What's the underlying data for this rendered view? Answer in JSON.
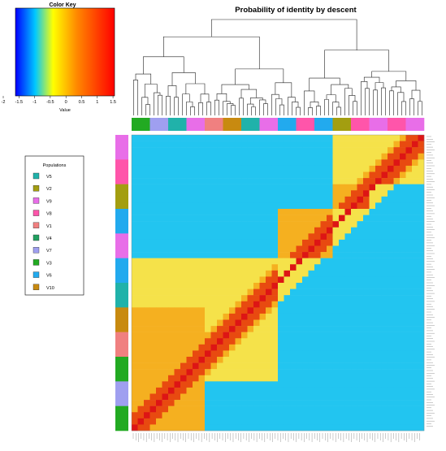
{
  "chart_data": {
    "type": "heatmap",
    "title": "Probability of identity by descent",
    "color_key": {
      "title": "Color Key",
      "xlabel": "Value",
      "ticks": [
        "-2",
        "-1.5",
        "-1",
        "-0.5",
        "0",
        "0.5",
        "1",
        "1.5"
      ],
      "range": [
        -2,
        1.5
      ],
      "colors": [
        "#0000ff",
        "#00c8ff",
        "#ffff00",
        "#ff8800",
        "#ff0000"
      ]
    },
    "legend": {
      "title": "Populations",
      "placement": "left",
      "items": [
        {
          "label": "V5",
          "color": "#20b2aa"
        },
        {
          "label": "V2",
          "color": "#a39e10"
        },
        {
          "label": "V9",
          "color": "#e86ee8"
        },
        {
          "label": "V8",
          "color": "#ff55aa"
        },
        {
          "label": "V1",
          "color": "#f08080"
        },
        {
          "label": "V4",
          "color": "#20a060"
        },
        {
          "label": "V7",
          "color": "#9f9ff0"
        },
        {
          "label": "V3",
          "color": "#22aa22"
        },
        {
          "label": "V6",
          "color": "#22aaee"
        },
        {
          "label": "V10",
          "color": "#c88a10"
        }
      ]
    },
    "cell_colors": {
      "low": "#22c5f0",
      "mid": "#f5e24a",
      "high": "#f5b020",
      "top": "#e84a10",
      "diag": "#dd1515"
    },
    "column_population_order": [
      "V3",
      "V7",
      "V5",
      "V9",
      "V1",
      "V10",
      "V5",
      "V9",
      "V6",
      "V8",
      "V6",
      "V2",
      "V8",
      "V9",
      "V8",
      "V9"
    ],
    "row_population_order": [
      "V9",
      "V8",
      "V2",
      "V6",
      "V9",
      "V6",
      "V5",
      "V10",
      "V1",
      "V3",
      "V7",
      "V3"
    ],
    "blocks": [
      {
        "rows": [
          0,
          1
        ],
        "cols": [
          11,
          15
        ],
        "level": "mid"
      },
      {
        "rows": [
          2,
          2
        ],
        "cols": [
          11,
          12
        ],
        "level": "high"
      },
      {
        "rows": [
          3,
          4
        ],
        "cols": [
          8,
          10
        ],
        "level": "high"
      },
      {
        "rows": [
          5,
          9
        ],
        "cols": [
          0,
          7
        ],
        "level": "mid"
      },
      {
        "rows": [
          7,
          11
        ],
        "cols": [
          0,
          3
        ],
        "level": "high"
      }
    ]
  }
}
